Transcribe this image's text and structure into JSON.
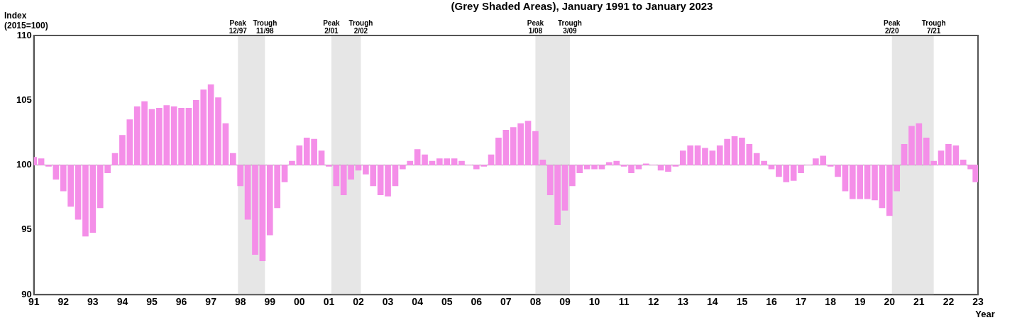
{
  "chart_data": {
    "type": "bar",
    "title": "(Grey Shaded Areas), January 1991 to January 2023",
    "ylabel": "Index (2015=100)",
    "xlabel": "Year",
    "x": [
      1991,
      1991.25,
      1991.5,
      1991.75,
      1992,
      1992.25,
      1992.5,
      1992.75,
      1993,
      1993.25,
      1993.5,
      1993.75,
      1994,
      1994.25,
      1994.5,
      1994.75,
      1995,
      1995.25,
      1995.5,
      1995.75,
      1996,
      1996.25,
      1996.5,
      1996.75,
      1997,
      1997.25,
      1997.5,
      1997.75,
      1998,
      1998.25,
      1998.5,
      1998.75,
      1999,
      1999.25,
      1999.5,
      1999.75,
      2000,
      2000.25,
      2000.5,
      2000.75,
      2001,
      2001.25,
      2001.5,
      2001.75,
      2002,
      2002.25,
      2002.5,
      2002.75,
      2003,
      2003.25,
      2003.5,
      2003.75,
      2004,
      2004.25,
      2004.5,
      2004.75,
      2005,
      2005.25,
      2005.5,
      2005.75,
      2006,
      2006.25,
      2006.5,
      2006.75,
      2007,
      2007.25,
      2007.5,
      2007.75,
      2008,
      2008.25,
      2008.5,
      2008.75,
      2009,
      2009.25,
      2009.5,
      2009.75,
      2010,
      2010.25,
      2010.5,
      2010.75,
      2011,
      2011.25,
      2011.5,
      2011.75,
      2012,
      2012.25,
      2012.5,
      2012.75,
      2013,
      2013.25,
      2013.5,
      2013.75,
      2014,
      2014.25,
      2014.5,
      2014.75,
      2015,
      2015.25,
      2015.5,
      2015.75,
      2016,
      2016.25,
      2016.5,
      2016.75,
      2017,
      2017.25,
      2017.5,
      2017.75,
      2018,
      2018.25,
      2018.5,
      2018.75,
      2019,
      2019.25,
      2019.5,
      2019.75,
      2020,
      2020.25,
      2020.5,
      2020.75,
      2021,
      2021.25,
      2021.5,
      2021.75,
      2022,
      2022.25,
      2022.5,
      2022.75,
      2022.92
    ],
    "values": [
      0.6,
      0.5,
      -0.1,
      -1.1,
      -2.0,
      -3.2,
      -4.2,
      -5.5,
      -5.2,
      -3.3,
      -0.6,
      0.9,
      2.3,
      3.5,
      4.5,
      4.9,
      4.3,
      4.4,
      4.6,
      4.5,
      4.4,
      4.4,
      5.0,
      5.8,
      6.2,
      5.2,
      3.2,
      0.9,
      -1.6,
      -4.2,
      -6.9,
      -7.4,
      -5.4,
      -3.3,
      -1.3,
      0.3,
      1.5,
      2.1,
      2.0,
      1.1,
      -0.1,
      -1.6,
      -2.3,
      -1.1,
      -0.4,
      -0.7,
      -1.6,
      -2.3,
      -2.4,
      -1.6,
      -0.3,
      0.3,
      1.2,
      0.8,
      0.3,
      0.5,
      0.5,
      0.5,
      0.3,
      0.0,
      -0.3,
      -0.1,
      0.8,
      2.1,
      2.7,
      2.9,
      3.2,
      3.4,
      2.6,
      0.4,
      -2.3,
      -4.6,
      -3.5,
      -1.6,
      -0.6,
      -0.3,
      -0.3,
      -0.3,
      0.2,
      0.3,
      -0.1,
      -0.6,
      -0.3,
      0.1,
      0.0,
      -0.4,
      -0.5,
      -0.1,
      1.1,
      1.5,
      1.5,
      1.3,
      1.1,
      1.5,
      2.0,
      2.2,
      2.1,
      1.6,
      0.9,
      0.3,
      -0.3,
      -0.9,
      -1.3,
      -1.2,
      -0.6,
      0.0,
      0.5,
      0.7,
      -0.1,
      -0.9,
      -2.0,
      -2.6,
      -2.6,
      -2.6,
      -2.7,
      -3.3,
      -3.9,
      -2.0,
      1.6,
      3.0,
      3.2,
      2.1,
      0.3,
      1.1,
      1.6,
      1.5,
      0.4,
      -0.3,
      -1.3
    ],
    "base": [
      100,
      100,
      100,
      100,
      100,
      100,
      100,
      100,
      100,
      100,
      100,
      100,
      100,
      100,
      100,
      100,
      100,
      100,
      100,
      100,
      100,
      100,
      100,
      100,
      100,
      100,
      100,
      100,
      100,
      100,
      100,
      100,
      100,
      100,
      100,
      100,
      100,
      100,
      100,
      100,
      100,
      100,
      100,
      100,
      100,
      100,
      100,
      100,
      100,
      100,
      100,
      100,
      100,
      100,
      100,
      100,
      100,
      100,
      100,
      100,
      100,
      100,
      100,
      100,
      100,
      100,
      100,
      100,
      100,
      100,
      100,
      100,
      100,
      100,
      100,
      100,
      100,
      100,
      100,
      100,
      100,
      100,
      100,
      100,
      100,
      100,
      100,
      100,
      100,
      100,
      100,
      100,
      100,
      100,
      100,
      100,
      100,
      100,
      100,
      100,
      100,
      100,
      100,
      100,
      100,
      100,
      100,
      100,
      100,
      100,
      100,
      100,
      100,
      100,
      100,
      100,
      100,
      100,
      100,
      100,
      100,
      100,
      100,
      100,
      100,
      100,
      100,
      100,
      100
    ],
    "color": "#f48ee8",
    "xlim": [
      1991,
      2023
    ],
    "xticks": [
      {
        "value": 1991,
        "label": "91"
      },
      {
        "value": 1992,
        "label": "92"
      },
      {
        "value": 1993,
        "label": "93"
      },
      {
        "value": 1994,
        "label": "94"
      },
      {
        "value": 1995,
        "label": "95"
      },
      {
        "value": 1996,
        "label": "96"
      },
      {
        "value": 1997,
        "label": "97"
      },
      {
        "value": 1998,
        "label": "98"
      },
      {
        "value": 1999,
        "label": "99"
      },
      {
        "value": 2000,
        "label": "00"
      },
      {
        "value": 2001,
        "label": "01"
      },
      {
        "value": 2002,
        "label": "02"
      },
      {
        "value": 2003,
        "label": "03"
      },
      {
        "value": 2004,
        "label": "04"
      },
      {
        "value": 2005,
        "label": "05"
      },
      {
        "value": 2006,
        "label": "06"
      },
      {
        "value": 2007,
        "label": "07"
      },
      {
        "value": 2008,
        "label": "08"
      },
      {
        "value": 2009,
        "label": "09"
      },
      {
        "value": 2010,
        "label": "10"
      },
      {
        "value": 2011,
        "label": "11"
      },
      {
        "value": 2012,
        "label": "12"
      },
      {
        "value": 2013,
        "label": "13"
      },
      {
        "value": 2014,
        "label": "14"
      },
      {
        "value": 2015,
        "label": "15"
      },
      {
        "value": 2016,
        "label": "16"
      },
      {
        "value": 2017,
        "label": "17"
      },
      {
        "value": 2018,
        "label": "18"
      },
      {
        "value": 2019,
        "label": "19"
      },
      {
        "value": 2020,
        "label": "20"
      },
      {
        "value": 2021,
        "label": "21"
      },
      {
        "value": 2022,
        "label": "22"
      },
      {
        "value": 2023,
        "label": "23"
      }
    ],
    "ylim": [
      90,
      110
    ],
    "yticks": [
      90,
      95,
      100,
      105,
      110
    ],
    "grid": false,
    "legend": false,
    "ref_lines": [
      {
        "axis": "y",
        "value": 100,
        "color": "#999999"
      }
    ],
    "bands": [
      {
        "axis": "x",
        "from": 1997.917,
        "to": 1998.833,
        "color": "#e6e6e6"
      },
      {
        "axis": "x",
        "from": 2001.083,
        "to": 2002.083,
        "color": "#e6e6e6"
      },
      {
        "axis": "x",
        "from": 2008.0,
        "to": 2009.167,
        "color": "#e6e6e6"
      },
      {
        "axis": "x",
        "from": 2020.083,
        "to": 2021.5,
        "color": "#e6e6e6"
      }
    ],
    "annotations": [
      {
        "text": "Peak 12/97",
        "x": 1997.917,
        "y": 110
      },
      {
        "text": "Trough 11/98",
        "x": 1998.833,
        "y": 110
      },
      {
        "text": "Peak 2/01",
        "x": 2001.083,
        "y": 110
      },
      {
        "text": "Trough 2/02",
        "x": 2002.083,
        "y": 110
      },
      {
        "text": "Peak 1/08",
        "x": 2008.0,
        "y": 110
      },
      {
        "text": "Trough 3/09",
        "x": 2009.167,
        "y": 110
      },
      {
        "text": "Peak 2/20",
        "x": 2020.083,
        "y": 110
      },
      {
        "text": "Trough 7/21",
        "x": 2021.5,
        "y": 110
      }
    ]
  }
}
